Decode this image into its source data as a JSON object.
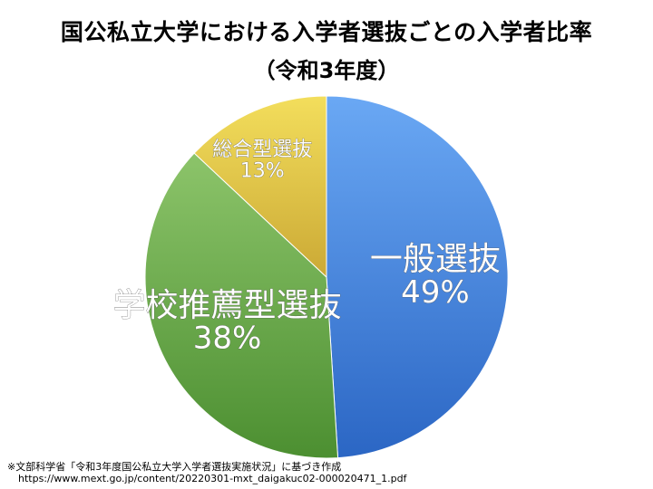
{
  "chart_data": {
    "type": "pie",
    "title": "国公私立大学における入学者選抜ごとの入学者比率",
    "subtitle": "（令和3年度）",
    "slices": [
      {
        "name": "一般選抜",
        "value": 49,
        "label": "49%",
        "color": "#3a7bd5"
      },
      {
        "name": "学校推薦型選抜",
        "value": 38,
        "label": "38%",
        "color": "#61a140"
      },
      {
        "name": "総合型選抜",
        "value": 13,
        "label": "13%",
        "color": "#e4bf3a"
      }
    ],
    "legend": "none"
  },
  "source": {
    "line1": "※文部科学省「令和3年度国公私立大学入学者選抜実施状況」に基づき作成",
    "line2": "https://www.mext.go.jp/content/20220301-mxt_daigakuc02-000020471_1.pdf"
  }
}
